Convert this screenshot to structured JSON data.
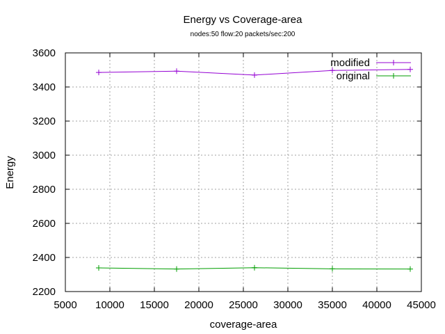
{
  "chart_data": {
    "type": "line",
    "title": "Energy vs Coverage-area",
    "subtitle": "nodes:50  flow:20  packets/sec:200",
    "xlabel": "coverage-area",
    "ylabel": "Energy",
    "xlim": [
      5000,
      45000
    ],
    "ylim": [
      2200,
      3600
    ],
    "xticks": [
      5000,
      10000,
      15000,
      20000,
      25000,
      30000,
      35000,
      40000,
      45000
    ],
    "yticks": [
      2200,
      2400,
      2600,
      2800,
      3000,
      3200,
      3400,
      3600
    ],
    "grid": true,
    "legend_position": "top-right",
    "series": [
      {
        "name": "modified",
        "color": "#9400d3",
        "x": [
          8750,
          17500,
          26250,
          35000,
          43750
        ],
        "y": [
          3485,
          3493,
          3470,
          3497,
          3503
        ]
      },
      {
        "name": "original",
        "color": "#009e00",
        "x": [
          8750,
          17500,
          26250,
          35000,
          43750
        ],
        "y": [
          2339,
          2332,
          2340,
          2333,
          2332
        ]
      }
    ]
  }
}
